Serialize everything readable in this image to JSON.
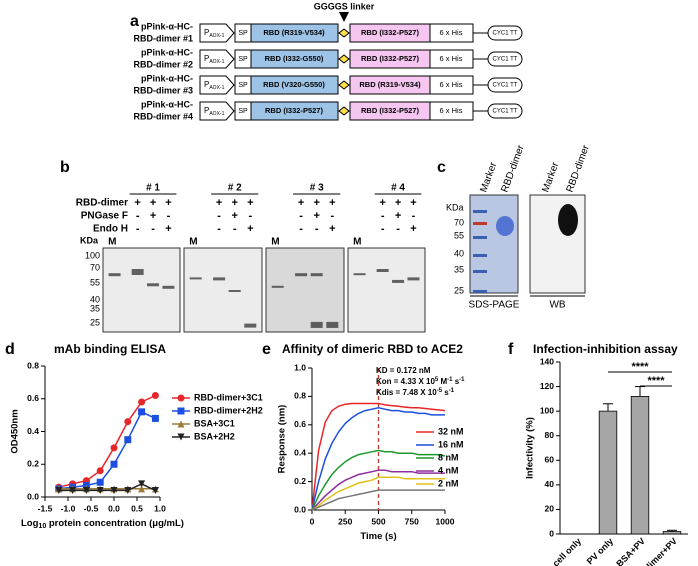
{
  "panel_a": {
    "label": "a",
    "linker": "GGGGS linker",
    "promoter": "P",
    "promoter_sub": "AOX-1",
    "constructs": [
      {
        "name_line1": "pPink-α-HC-",
        "name_line2": "RBD-dimer #1",
        "sp": "SP",
        "rbd1": "RBD (R319-V534)",
        "rbd2": "RBD (I332-P527)",
        "his": "6 x His",
        "terminator": "CYC1 TT"
      },
      {
        "name_line1": "pPink-α-HC-",
        "name_line2": "RBD-dimer #2",
        "sp": "SP",
        "rbd1": "RBD (I332-G550)",
        "rbd2": "RBD (I332-P527)",
        "his": "6 x His",
        "terminator": "CYC1 TT"
      },
      {
        "name_line1": "pPink-α-HC-",
        "name_line2": "RBD-dimer #3",
        "sp": "SP",
        "rbd1": "RBD (V320-G550)",
        "rbd2": "RBD (R319-V534)",
        "his": "6 x His",
        "terminator": "CYC1 TT"
      },
      {
        "name_line1": "pPink-α-HC-",
        "name_line2": "RBD-dimer #4",
        "sp": "SP",
        "rbd1": "RBD (I332-P527)",
        "rbd2": "RBD (I332-P527)",
        "his": "6 x His",
        "terminator": "CYC1 TT"
      }
    ]
  },
  "panel_b": {
    "label": "b",
    "row_labels": [
      "RBD-dimer",
      "PNGase F",
      "Endo H"
    ],
    "kda": "KDa",
    "marker": "M",
    "mw_ticks": [
      "100",
      "70",
      "55",
      "40",
      "35",
      "25"
    ],
    "groups": [
      {
        "title": "# 1",
        "signs": [
          [
            "+",
            "+",
            "+"
          ],
          [
            "-",
            "+",
            "-"
          ],
          [
            "-",
            "-",
            "+"
          ]
        ]
      },
      {
        "title": "# 2",
        "signs": [
          [
            "+",
            "+",
            "+"
          ],
          [
            "-",
            "+",
            "-"
          ],
          [
            "-",
            "-",
            "+"
          ]
        ]
      },
      {
        "title": "# 3",
        "signs": [
          [
            "+",
            "+",
            "+"
          ],
          [
            "-",
            "+",
            "-"
          ],
          [
            "-",
            "-",
            "+"
          ]
        ]
      },
      {
        "title": "# 4",
        "signs": [
          [
            "+",
            "+",
            "+"
          ],
          [
            "-",
            "+",
            "-"
          ],
          [
            "-",
            "-",
            "+"
          ]
        ]
      }
    ]
  },
  "panel_c": {
    "label": "c",
    "lanes": [
      "Marker",
      "RBD-dimer"
    ],
    "kda": "KDa",
    "mw_ticks": [
      "70",
      "55",
      "40",
      "35",
      "25"
    ],
    "captions": [
      "SDS-PAGE",
      "WB"
    ]
  },
  "chart_data": [
    {
      "type": "line",
      "panel_label": "d",
      "title": "mAb binding ELISA",
      "y_label": "OD450nm",
      "x_label": "Log",
      "x_label_sub": "10",
      "x_label_rest": " protein concentration (μg/mL)",
      "xlim": [
        -1.5,
        1.0
      ],
      "ylim": [
        0,
        0.8
      ],
      "xticks": [
        {
          "value": -1.5,
          "label": "-1.5"
        },
        {
          "value": -1,
          "label": "-1.0"
        },
        {
          "value": -0.5,
          "label": "-0.5"
        },
        {
          "value": 0,
          "label": "0.0"
        },
        0.5,
        {
          "value": 1,
          "label": "1.0"
        }
      ],
      "yticks": [
        {
          "value": 0,
          "label": "0.0"
        },
        0.2,
        0.4,
        0.6,
        0.8
      ],
      "x": [
        -1.2,
        -0.9,
        -0.6,
        -0.3,
        0,
        0.3,
        0.6,
        0.9
      ],
      "series": [
        {
          "name": "RBD-dimer+3C1",
          "color": "#e8262a",
          "marker": "circle",
          "values": [
            0.06,
            0.08,
            0.1,
            0.16,
            0.3,
            0.46,
            0.58,
            0.62
          ]
        },
        {
          "name": "RBD-dimer+2H2",
          "color": "#1c4fe0",
          "marker": "square",
          "values": [
            0.05,
            0.06,
            0.07,
            0.09,
            0.2,
            0.35,
            0.52,
            0.48
          ]
        },
        {
          "name": "BSA+3C1",
          "color": "#9a7b3a",
          "marker": "triangle",
          "values": [
            0.05,
            0.05,
            0.05,
            0.05,
            0.05,
            0.05,
            0.05,
            0.05
          ]
        },
        {
          "name": "BSA+2H2",
          "color": "#222222",
          "marker": "triangle-down",
          "values": [
            0.04,
            0.04,
            0.04,
            0.04,
            0.04,
            0.04,
            0.08,
            0.04
          ]
        }
      ]
    },
    {
      "type": "line",
      "panel_label": "e",
      "title": "Affinity of dimeric RBD to ACE2",
      "y_label": "Response (nm)",
      "x_label": "Time (s)",
      "xlim": [
        0,
        1000
      ],
      "ylim": [
        0,
        1.0
      ],
      "xticks": [
        0,
        250,
        500,
        750,
        1000
      ],
      "yticks": [
        {
          "value": 0,
          "label": "0.0"
        },
        0.2,
        0.4,
        0.6,
        0.8,
        {
          "value": 1,
          "label": "1.0"
        }
      ],
      "vline_x": 500,
      "vline_color": "#c0392b",
      "annotations": [
        [
          "KD = 0.172 nM"
        ],
        [
          "Kon = 4.33 X 10",
          "5",
          " M",
          "-1",
          " s",
          "-1"
        ],
        [
          "Kdis = 7.48 X 10",
          "-5",
          " s",
          "-1"
        ]
      ],
      "x": [
        0,
        50,
        100,
        150,
        200,
        250,
        300,
        350,
        400,
        450,
        500,
        550,
        600,
        650,
        700,
        750,
        800,
        850,
        900,
        950,
        1000
      ],
      "series": [
        {
          "name": "32 nM",
          "color": "#e8262a",
          "values": [
            0,
            0.42,
            0.62,
            0.7,
            0.73,
            0.745,
            0.75,
            0.75,
            0.75,
            0.75,
            0.75,
            0.74,
            0.735,
            0.73,
            0.725,
            0.72,
            0.72,
            0.715,
            0.71,
            0.705,
            0.7
          ]
        },
        {
          "name": "16 nM",
          "color": "#1c4fe0",
          "values": [
            0,
            0.2,
            0.36,
            0.47,
            0.55,
            0.61,
            0.65,
            0.68,
            0.7,
            0.71,
            0.72,
            0.71,
            0.7,
            0.7,
            0.69,
            0.69,
            0.68,
            0.68,
            0.67,
            0.67,
            0.67
          ]
        },
        {
          "name": "8 nM",
          "color": "#1a9a2a",
          "values": [
            0,
            0.1,
            0.18,
            0.25,
            0.3,
            0.34,
            0.37,
            0.39,
            0.4,
            0.41,
            0.42,
            0.41,
            0.41,
            0.4,
            0.4,
            0.4,
            0.39,
            0.39,
            0.39,
            0.39,
            0.38
          ]
        },
        {
          "name": "4 nM",
          "color": "#8e2d9e",
          "values": [
            0,
            0.05,
            0.1,
            0.14,
            0.18,
            0.21,
            0.23,
            0.25,
            0.26,
            0.27,
            0.28,
            0.28,
            0.27,
            0.27,
            0.27,
            0.27,
            0.26,
            0.26,
            0.26,
            0.26,
            0.26
          ]
        },
        {
          "name": "2 nM",
          "color": "#e0c21a",
          "values": [
            0,
            0.03,
            0.07,
            0.1,
            0.13,
            0.15,
            0.17,
            0.19,
            0.2,
            0.21,
            0.23,
            0.23,
            0.23,
            0.23,
            0.22,
            0.22,
            0.22,
            0.22,
            0.22,
            0.22,
            0.22
          ]
        },
        {
          "color": "#777777",
          "values": [
            0,
            0.02,
            0.04,
            0.06,
            0.08,
            0.09,
            0.1,
            0.11,
            0.12,
            0.13,
            0.14,
            0.14,
            0.14,
            0.14,
            0.14,
            0.14,
            0.14,
            0.14,
            0.14,
            0.14,
            0.14
          ]
        }
      ]
    },
    {
      "type": "bar",
      "panel_label": "f",
      "title": "Infection-inhibition assay",
      "y_label": "Infectivity (%)",
      "categories": [
        "cell only",
        "PV only",
        "BSA+PV",
        "RBD-dimer+PV"
      ],
      "values": [
        0,
        100,
        112,
        2
      ],
      "errors": [
        0,
        6,
        8,
        1
      ],
      "color": "#a6a6a6",
      "ylim": [
        0,
        140
      ],
      "yticks": [
        0,
        20,
        40,
        60,
        80,
        100,
        120,
        140
      ],
      "significance": [
        "****",
        "****"
      ]
    }
  ]
}
